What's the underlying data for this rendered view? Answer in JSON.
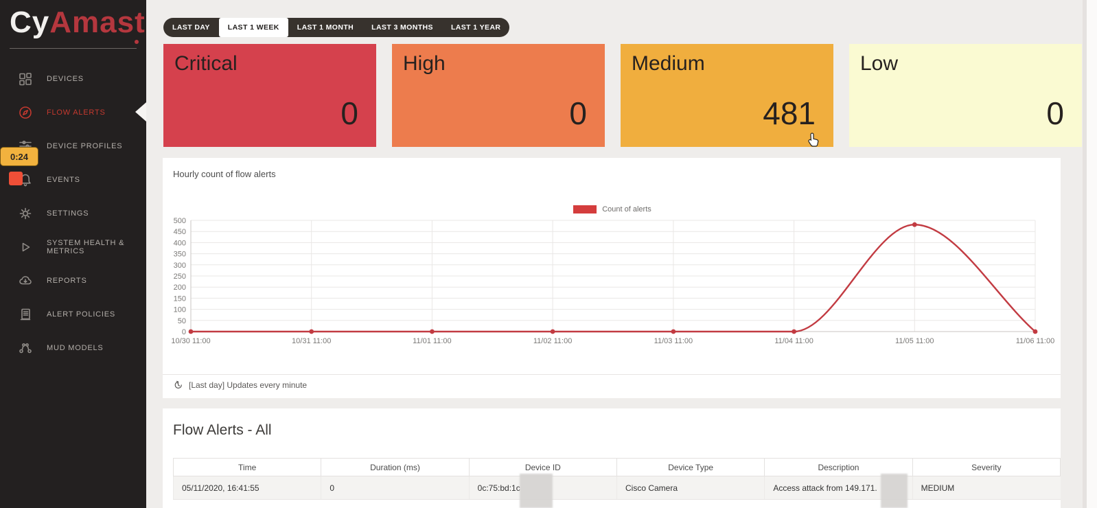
{
  "video_overlay": {
    "timestamp": "0:24"
  },
  "sidebar": {
    "logo": {
      "prefix": "Cy",
      "accent": "Amast"
    },
    "items": [
      {
        "id": "devices",
        "label": "DEVICES",
        "icon": "grid-icon",
        "active": false
      },
      {
        "id": "flow-alerts",
        "label": "FLOW ALERTS",
        "icon": "compass-icon",
        "active": true
      },
      {
        "id": "device-profiles",
        "label": "DEVICE PROFILES",
        "icon": "sliders-icon",
        "active": false
      },
      {
        "id": "events",
        "label": "EVENTS",
        "icon": "bell-icon",
        "active": false
      },
      {
        "id": "settings",
        "label": "SETTINGS",
        "icon": "gear-icon",
        "active": false
      },
      {
        "id": "system-health-metrics",
        "label": "SYSTEM HEALTH & METRICS",
        "icon": "play-icon",
        "active": false
      },
      {
        "id": "reports",
        "label": "REPORTS",
        "icon": "cloud-download-icon",
        "active": false
      },
      {
        "id": "alert-policies",
        "label": "ALERT POLICIES",
        "icon": "document-icon",
        "active": false
      },
      {
        "id": "mud-models",
        "label": "MUD MODELS",
        "icon": "network-icon",
        "active": false
      }
    ]
  },
  "time_range_tabs": [
    {
      "label": "LAST DAY",
      "active": false
    },
    {
      "label": "LAST 1 WEEK",
      "active": true
    },
    {
      "label": "LAST 1 MONTH",
      "active": false
    },
    {
      "label": "LAST 3 MONTHS",
      "active": false
    },
    {
      "label": "LAST 1 YEAR",
      "active": false
    }
  ],
  "severity_cards": [
    {
      "label": "Critical",
      "value": "0",
      "bg": "#d5414d"
    },
    {
      "label": "High",
      "value": "0",
      "bg": "#ed7c4d"
    },
    {
      "label": "Medium",
      "value": "481",
      "bg": "#f0ae3e"
    },
    {
      "label": "Low",
      "value": "0",
      "bg": "#fafad2"
    }
  ],
  "chart_data": {
    "type": "line",
    "title": "Hourly count of flow alerts",
    "x": [
      "10/30 11:00",
      "10/31 11:00",
      "11/01 11:00",
      "11/02 11:00",
      "11/03 11:00",
      "11/04 11:00",
      "11/05 11:00",
      "11/06 11:00"
    ],
    "series": [
      {
        "name": "Count of alerts",
        "color": "#c23b42",
        "values": [
          0,
          0,
          0,
          0,
          0,
          0,
          481,
          0
        ]
      }
    ],
    "legend_swatch_color": "#d43d3d",
    "y_ticks": [
      0,
      50,
      100,
      150,
      200,
      250,
      300,
      350,
      400,
      450,
      500
    ],
    "ylim": [
      0,
      500
    ],
    "grid": true,
    "legend_position": "top-center",
    "footnote": "[Last day] Updates every minute"
  },
  "flow_alerts_table": {
    "title": "Flow Alerts - All",
    "headers": [
      "Time",
      "Duration (ms)",
      "Device ID",
      "Device Type",
      "Description",
      "Severity"
    ],
    "rows": [
      [
        "05/11/2020, 16:41:55",
        "0",
        "0c:75:bd:1c",
        "Cisco Camera",
        "Access attack from 149.171.",
        "MEDIUM"
      ]
    ]
  }
}
